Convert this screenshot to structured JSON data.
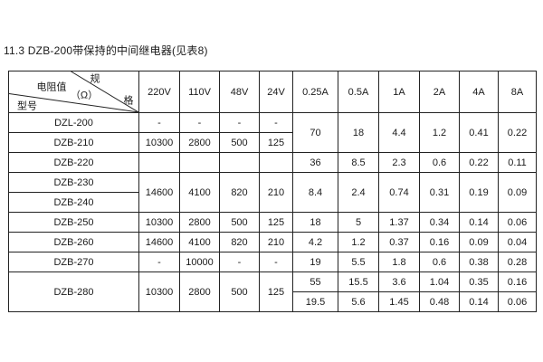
{
  "page_title": "11.3 DZB-200带保持的中间继电器(见表8)",
  "table": {
    "corner": {
      "middle": "电阻值",
      "unit": "（Ω）",
      "spec_top": "规",
      "spec_bottom": "格",
      "bottom_left": "型号"
    },
    "column_headers": [
      "220V",
      "110V",
      "48V",
      "24V",
      "0.25A",
      "0.5A",
      "1A",
      "2A",
      "4A",
      "8A"
    ],
    "rows": [
      {
        "cells": [
          {
            "text": "DZL-200",
            "label": true
          },
          {
            "text": "-"
          },
          {
            "text": "-"
          },
          {
            "text": "-"
          },
          {
            "text": "-"
          },
          {
            "text": "70",
            "rowspan": 2,
            "valign": "low"
          },
          {
            "text": "18",
            "rowspan": 2,
            "valign": "low"
          },
          {
            "text": "4.4",
            "rowspan": 2,
            "valign": "low"
          },
          {
            "text": "1.2",
            "rowspan": 2,
            "valign": "low"
          },
          {
            "text": "0.41",
            "rowspan": 2,
            "valign": "low"
          },
          {
            "text": "0.22",
            "rowspan": 2,
            "valign": "low"
          }
        ]
      },
      {
        "cells": [
          {
            "text": "DZB-210",
            "label": true
          },
          {
            "text": "10300"
          },
          {
            "text": "2800"
          },
          {
            "text": "500"
          },
          {
            "text": "125"
          }
        ]
      },
      {
        "cells": [
          {
            "text": "DZB-220",
            "label": true
          },
          {
            "text": ""
          },
          {
            "text": ""
          },
          {
            "text": ""
          },
          {
            "text": ""
          },
          {
            "text": "36"
          },
          {
            "text": "8.5"
          },
          {
            "text": "2.3"
          },
          {
            "text": "0.6"
          },
          {
            "text": "0.22"
          },
          {
            "text": "0.11"
          }
        ]
      },
      {
        "cells": [
          {
            "text": "DZB-230",
            "label": true
          },
          {
            "text": "14600",
            "rowspan": 2
          },
          {
            "text": "4100",
            "rowspan": 2
          },
          {
            "text": "820",
            "rowspan": 2
          },
          {
            "text": "210",
            "rowspan": 2
          },
          {
            "text": "8.4",
            "rowspan": 2
          },
          {
            "text": "2.4",
            "rowspan": 2
          },
          {
            "text": "0.74",
            "rowspan": 2
          },
          {
            "text": "0.31",
            "rowspan": 2
          },
          {
            "text": "0.19",
            "rowspan": 2
          },
          {
            "text": "0.09",
            "rowspan": 2
          }
        ]
      },
      {
        "cells": [
          {
            "text": "DZB-240",
            "label": true
          }
        ]
      },
      {
        "cells": [
          {
            "text": "DZB-250",
            "label": true
          },
          {
            "text": "10300"
          },
          {
            "text": "2800"
          },
          {
            "text": "500"
          },
          {
            "text": "125"
          },
          {
            "text": "18"
          },
          {
            "text": "5"
          },
          {
            "text": "1.37"
          },
          {
            "text": "0.34"
          },
          {
            "text": "0.14"
          },
          {
            "text": "0.06"
          }
        ]
      },
      {
        "cells": [
          {
            "text": "DZB-260",
            "label": true
          },
          {
            "text": "14600"
          },
          {
            "text": "4100"
          },
          {
            "text": "820"
          },
          {
            "text": "210"
          },
          {
            "text": "4.2"
          },
          {
            "text": "1.2"
          },
          {
            "text": "0.37"
          },
          {
            "text": "0.16"
          },
          {
            "text": "0.09"
          },
          {
            "text": "0.04"
          }
        ]
      },
      {
        "cells": [
          {
            "text": "DZB-270",
            "label": true
          },
          {
            "text": "-"
          },
          {
            "text": "10000"
          },
          {
            "text": "-"
          },
          {
            "text": "-"
          },
          {
            "text": "19"
          },
          {
            "text": "5.5"
          },
          {
            "text": "1.8"
          },
          {
            "text": "0.6"
          },
          {
            "text": "0.38"
          },
          {
            "text": "0.28"
          }
        ]
      },
      {
        "cells": [
          {
            "text": "DZB-280",
            "label": true,
            "rowspan": 2,
            "valign": "high"
          },
          {
            "text": "10300",
            "rowspan": 2,
            "valign": "high"
          },
          {
            "text": "2800",
            "rowspan": 2,
            "valign": "high"
          },
          {
            "text": "500",
            "rowspan": 2,
            "valign": "high"
          },
          {
            "text": "125",
            "rowspan": 2,
            "valign": "high"
          },
          {
            "text": "55"
          },
          {
            "text": "15.5"
          },
          {
            "text": "3.6"
          },
          {
            "text": "1.04"
          },
          {
            "text": "0.35"
          },
          {
            "text": "0.16"
          }
        ]
      },
      {
        "cells": [
          {
            "text": "19.5"
          },
          {
            "text": "5.6"
          },
          {
            "text": "1.45"
          },
          {
            "text": "0.48"
          },
          {
            "text": "0.14"
          },
          {
            "text": "0.06"
          }
        ]
      }
    ]
  }
}
